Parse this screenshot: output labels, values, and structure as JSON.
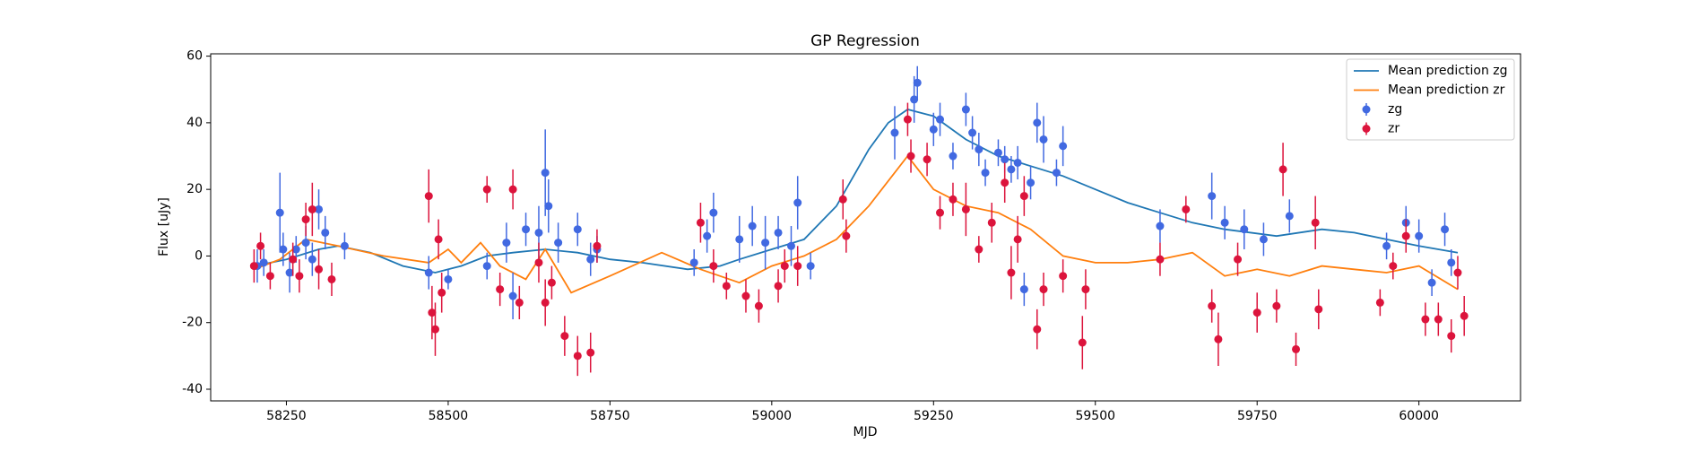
{
  "chart_data": {
    "type": "errorbar",
    "title": "GP Regression",
    "xlabel": "MJD",
    "ylabel": "Flux [uJy]",
    "xlim": [
      58133,
      60157
    ],
    "ylim": [
      -43.5,
      60.7
    ],
    "xticks": [
      58250,
      58500,
      58750,
      59000,
      59250,
      59500,
      59750,
      60000
    ],
    "yticks": [
      -40,
      -20,
      0,
      20,
      40,
      60
    ],
    "grid": false,
    "legend": "upper right",
    "series": [
      {
        "name": "Mean prediction zg",
        "color": "#1f77b4",
        "x": [
          58200,
          58250,
          58300,
          58330,
          58380,
          58430,
          58480,
          58520,
          58560,
          58600,
          58650,
          58700,
          58750,
          58800,
          58870,
          58920,
          58950,
          59000,
          59050,
          59100,
          59150,
          59180,
          59210,
          59250,
          59300,
          59350,
          59400,
          59450,
          59500,
          59550,
          59600,
          59650,
          59700,
          59780,
          59850,
          59900,
          59950,
          60000,
          60060
        ],
        "values": [
          -3,
          -1,
          2,
          3,
          1,
          -3,
          -5,
          -3,
          0,
          1,
          2,
          1,
          -1,
          -2,
          -4,
          -3,
          -1,
          2,
          5,
          15,
          32,
          40,
          44,
          42,
          35,
          30,
          27,
          24,
          20,
          16,
          13,
          10,
          8,
          6,
          8,
          7,
          5,
          3,
          1
        ]
      },
      {
        "name": "Mean prediction zr",
        "color": "#ff7f0e",
        "x": [
          58200,
          58240,
          58280,
          58330,
          58400,
          58470,
          58500,
          58520,
          58550,
          58580,
          58620,
          58650,
          58690,
          58750,
          58830,
          58890,
          58950,
          59000,
          59050,
          59100,
          59150,
          59210,
          59250,
          59300,
          59350,
          59400,
          59450,
          59500,
          59550,
          59600,
          59650,
          59700,
          59750,
          59800,
          59850,
          59900,
          59950,
          60000,
          60060
        ],
        "values": [
          -4,
          -1,
          5,
          3,
          0,
          -2,
          2,
          -2,
          4,
          -3,
          -7,
          2,
          -11,
          -6,
          1,
          -4,
          -8,
          -3,
          0,
          5,
          15,
          30,
          20,
          15,
          13,
          8,
          0,
          -2,
          -2,
          -1,
          1,
          -6,
          -4,
          -6,
          -3,
          -4,
          -5,
          -3,
          -10
        ]
      },
      {
        "name": "zg",
        "color": "#4169e1",
        "x": [
          58205,
          58215,
          58240,
          58245,
          58255,
          58265,
          58280,
          58290,
          58300,
          58310,
          58340,
          58470,
          58500,
          58560,
          58590,
          58600,
          58620,
          58640,
          58650,
          58655,
          58670,
          58700,
          58720,
          58730,
          58880,
          58900,
          58910,
          58950,
          58970,
          58990,
          59010,
          59030,
          59040,
          59060,
          59190,
          59220,
          59225,
          59250,
          59260,
          59280,
          59300,
          59310,
          59320,
          59330,
          59350,
          59360,
          59370,
          59380,
          59390,
          59400,
          59410,
          59420,
          59440,
          59450,
          59600,
          59680,
          59700,
          59730,
          59760,
          59800,
          59950,
          59980,
          60000,
          60020,
          60040,
          60050
        ],
        "values": [
          -3,
          -2,
          13,
          2,
          -5,
          2,
          4,
          -1,
          14,
          7,
          3,
          -5,
          -7,
          -3,
          4,
          -12,
          8,
          7,
          25,
          15,
          4,
          8,
          -1,
          2,
          -2,
          6,
          13,
          5,
          9,
          4,
          7,
          3,
          16,
          -3,
          37,
          47,
          52,
          38,
          41,
          30,
          44,
          37,
          32,
          25,
          31,
          29,
          26,
          28,
          -10,
          22,
          40,
          35,
          25,
          33,
          9,
          18,
          10,
          8,
          5,
          12,
          3,
          10,
          6,
          -8,
          8,
          -2
        ],
        "errors": [
          5,
          4,
          12,
          5,
          6,
          4,
          5,
          5,
          6,
          5,
          4,
          5,
          3,
          4,
          6,
          7,
          5,
          8,
          13,
          8,
          6,
          5,
          5,
          4,
          4,
          5,
          6,
          7,
          6,
          8,
          5,
          6,
          8,
          4,
          8,
          7,
          5,
          5,
          5,
          4,
          5,
          5,
          5,
          4,
          4,
          4,
          4,
          5,
          5,
          5,
          6,
          7,
          4,
          6,
          5,
          7,
          5,
          6,
          5,
          5,
          4,
          5,
          5,
          4,
          5,
          4
        ]
      },
      {
        "name": "zr",
        "color": "#dc143c",
        "x": [
          58200,
          58210,
          58225,
          58260,
          58270,
          58280,
          58290,
          58300,
          58320,
          58470,
          58475,
          58480,
          58485,
          58490,
          58560,
          58580,
          58600,
          58610,
          58640,
          58650,
          58660,
          58680,
          58700,
          58720,
          58730,
          58890,
          58910,
          58930,
          58960,
          58980,
          59010,
          59020,
          59040,
          59110,
          59115,
          59210,
          59215,
          59240,
          59260,
          59280,
          59300,
          59320,
          59340,
          59360,
          59370,
          59380,
          59390,
          59410,
          59420,
          59450,
          59480,
          59485,
          59600,
          59640,
          59680,
          59690,
          59720,
          59750,
          59780,
          59790,
          59810,
          59840,
          59845,
          59940,
          59960,
          59980,
          60010,
          60030,
          60050,
          60060,
          60070
        ],
        "values": [
          -3,
          3,
          -6,
          -1,
          -6,
          11,
          14,
          -4,
          -7,
          18,
          -17,
          -22,
          5,
          -11,
          20,
          -10,
          20,
          -14,
          -2,
          -14,
          -8,
          -24,
          -30,
          -29,
          3,
          10,
          -3,
          -9,
          -12,
          -15,
          -9,
          -3,
          -3,
          17,
          6,
          41,
          30,
          29,
          13,
          17,
          14,
          2,
          10,
          22,
          -5,
          5,
          18,
          -22,
          -10,
          -6,
          -26,
          -10,
          -1,
          14,
          -15,
          -25,
          -1,
          -17,
          -15,
          26,
          -28,
          10,
          -16,
          -14,
          -3,
          6,
          -19,
          -19,
          -24,
          -5,
          -18
        ],
        "errors": [
          5,
          4,
          4,
          5,
          5,
          5,
          8,
          6,
          5,
          8,
          8,
          8,
          6,
          6,
          4,
          5,
          6,
          5,
          6,
          7,
          5,
          6,
          6,
          6,
          5,
          6,
          5,
          4,
          5,
          5,
          5,
          5,
          6,
          6,
          5,
          5,
          5,
          5,
          5,
          5,
          8,
          4,
          6,
          6,
          8,
          7,
          6,
          6,
          5,
          5,
          8,
          6,
          5,
          4,
          5,
          8,
          5,
          6,
          5,
          8,
          5,
          8,
          6,
          4,
          4,
          5,
          5,
          5,
          5,
          5,
          6
        ]
      }
    ]
  }
}
